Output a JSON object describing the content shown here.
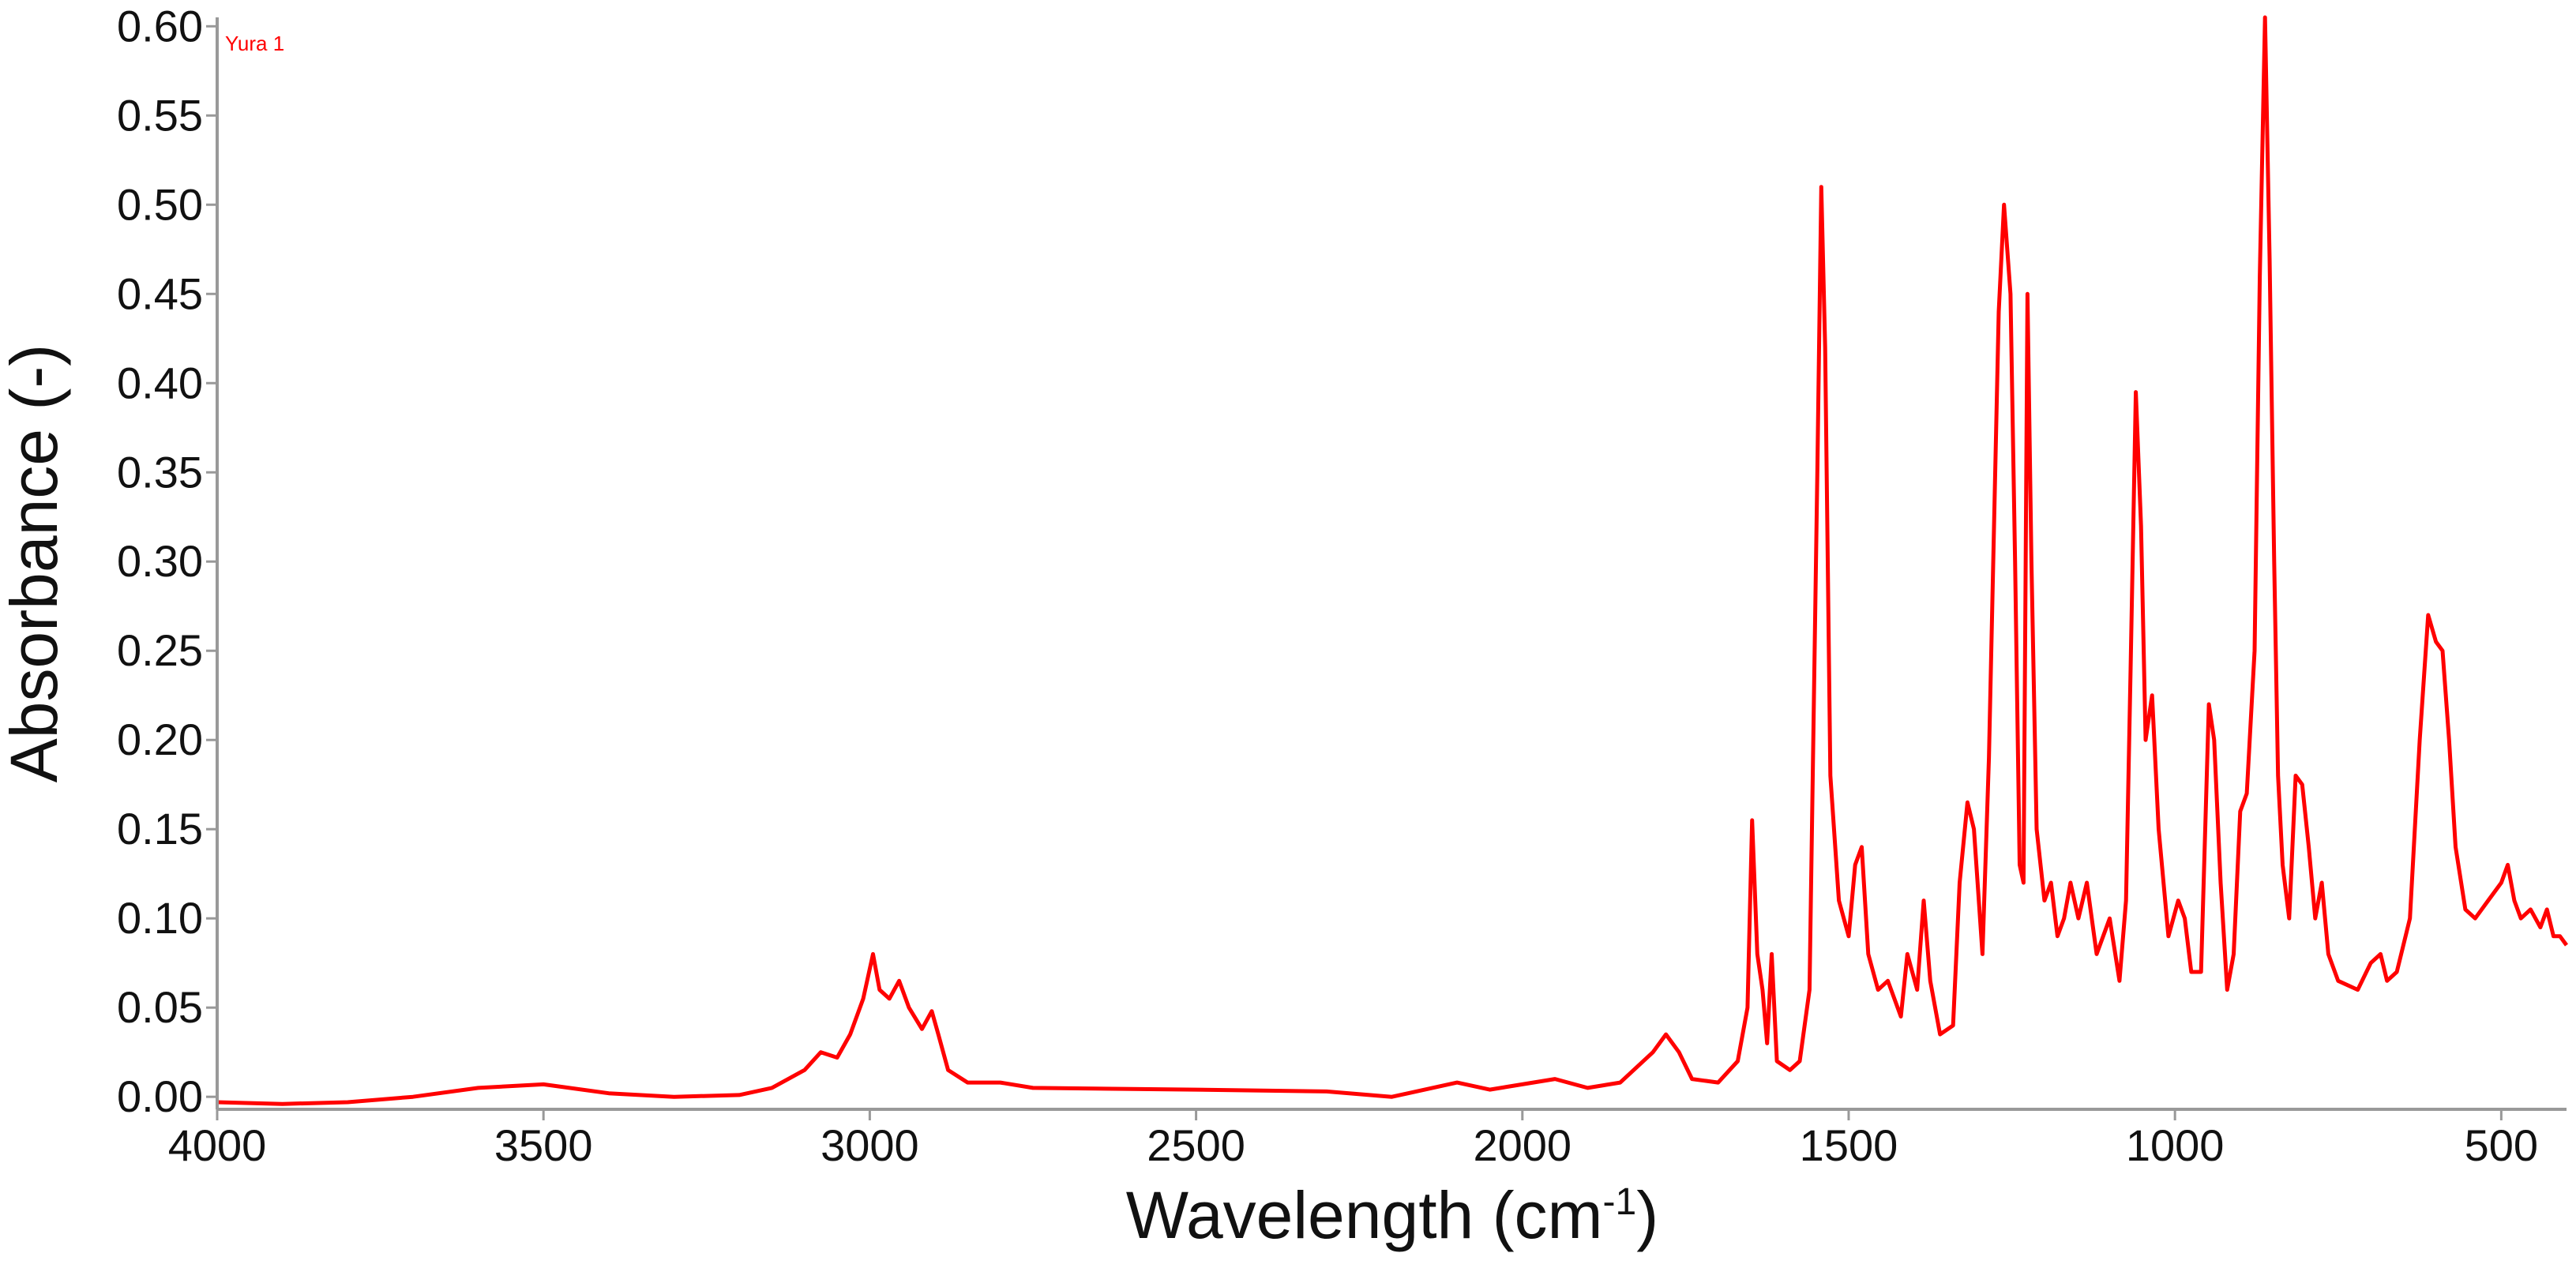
{
  "chart_data": {
    "type": "line",
    "title": "",
    "xlabel": "Wavelength (cm",
    "xlabel_superscript": "-1",
    "xlabel_suffix": ")",
    "ylabel": "Absorbance (-)",
    "xlim": [
      4000,
      400
    ],
    "ylim": [
      -0.007,
      0.605
    ],
    "x_ticks": [
      4000,
      3500,
      3000,
      2500,
      2000,
      1500,
      1000,
      500
    ],
    "x_tick_labels": [
      "4000",
      "3500",
      "3000",
      "2500",
      "2000",
      "1500",
      "1000",
      "500"
    ],
    "y_ticks": [
      0,
      0.05,
      0.1,
      0.15,
      0.2,
      0.25,
      0.3,
      0.35,
      0.4,
      0.45,
      0.5,
      0.55,
      0.6
    ],
    "y_tick_labels": [
      "0.00",
      "0.05",
      "0.10",
      "0.15",
      "0.20",
      "0.25",
      "0.30",
      "0.35",
      "0.40",
      "0.45",
      "0.50",
      "0.55",
      "0.60"
    ],
    "grid": false,
    "legend_position": "top-left",
    "series": [
      {
        "name": "Yura 1",
        "color": "#ff0000",
        "points": [
          [
            4000,
            -0.003
          ],
          [
            3900,
            -0.004
          ],
          [
            3800,
            -0.003
          ],
          [
            3700,
            0.0
          ],
          [
            3600,
            0.005
          ],
          [
            3500,
            0.007
          ],
          [
            3400,
            0.002
          ],
          [
            3300,
            0.0
          ],
          [
            3200,
            0.001
          ],
          [
            3150,
            0.005
          ],
          [
            3100,
            0.015
          ],
          [
            3075,
            0.025
          ],
          [
            3050,
            0.022
          ],
          [
            3030,
            0.035
          ],
          [
            3010,
            0.055
          ],
          [
            2995,
            0.08
          ],
          [
            2985,
            0.06
          ],
          [
            2970,
            0.055
          ],
          [
            2955,
            0.065
          ],
          [
            2940,
            0.05
          ],
          [
            2920,
            0.038
          ],
          [
            2905,
            0.048
          ],
          [
            2895,
            0.035
          ],
          [
            2880,
            0.015
          ],
          [
            2850,
            0.008
          ],
          [
            2800,
            0.008
          ],
          [
            2750,
            0.005
          ],
          [
            2500,
            0.004
          ],
          [
            2300,
            0.003
          ],
          [
            2200,
            0.0
          ],
          [
            2100,
            0.008
          ],
          [
            2050,
            0.004
          ],
          [
            1950,
            0.01
          ],
          [
            1900,
            0.005
          ],
          [
            1850,
            0.008
          ],
          [
            1800,
            0.025
          ],
          [
            1780,
            0.035
          ],
          [
            1760,
            0.025
          ],
          [
            1740,
            0.01
          ],
          [
            1700,
            0.008
          ],
          [
            1670,
            0.02
          ],
          [
            1655,
            0.05
          ],
          [
            1648,
            0.155
          ],
          [
            1640,
            0.08
          ],
          [
            1632,
            0.06
          ],
          [
            1625,
            0.03
          ],
          [
            1618,
            0.08
          ],
          [
            1610,
            0.02
          ],
          [
            1590,
            0.015
          ],
          [
            1575,
            0.02
          ],
          [
            1560,
            0.06
          ],
          [
            1548,
            0.35
          ],
          [
            1542,
            0.51
          ],
          [
            1536,
            0.42
          ],
          [
            1528,
            0.18
          ],
          [
            1515,
            0.11
          ],
          [
            1500,
            0.09
          ],
          [
            1490,
            0.13
          ],
          [
            1480,
            0.14
          ],
          [
            1470,
            0.08
          ],
          [
            1455,
            0.06
          ],
          [
            1440,
            0.065
          ],
          [
            1420,
            0.045
          ],
          [
            1410,
            0.08
          ],
          [
            1395,
            0.06
          ],
          [
            1385,
            0.11
          ],
          [
            1375,
            0.065
          ],
          [
            1360,
            0.035
          ],
          [
            1340,
            0.04
          ],
          [
            1330,
            0.12
          ],
          [
            1318,
            0.165
          ],
          [
            1308,
            0.15
          ],
          [
            1295,
            0.08
          ],
          [
            1285,
            0.19
          ],
          [
            1270,
            0.44
          ],
          [
            1262,
            0.5
          ],
          [
            1252,
            0.45
          ],
          [
            1245,
            0.3
          ],
          [
            1238,
            0.13
          ],
          [
            1232,
            0.12
          ],
          [
            1226,
            0.45
          ],
          [
            1220,
            0.3
          ],
          [
            1212,
            0.15
          ],
          [
            1200,
            0.11
          ],
          [
            1190,
            0.12
          ],
          [
            1180,
            0.09
          ],
          [
            1170,
            0.1
          ],
          [
            1160,
            0.12
          ],
          [
            1148,
            0.1
          ],
          [
            1135,
            0.12
          ],
          [
            1120,
            0.08
          ],
          [
            1100,
            0.1
          ],
          [
            1085,
            0.065
          ],
          [
            1075,
            0.11
          ],
          [
            1068,
            0.24
          ],
          [
            1060,
            0.395
          ],
          [
            1052,
            0.32
          ],
          [
            1045,
            0.2
          ],
          [
            1035,
            0.225
          ],
          [
            1025,
            0.15
          ],
          [
            1010,
            0.09
          ],
          [
            995,
            0.11
          ],
          [
            985,
            0.1
          ],
          [
            975,
            0.07
          ],
          [
            960,
            0.07
          ],
          [
            948,
            0.22
          ],
          [
            940,
            0.2
          ],
          [
            930,
            0.12
          ],
          [
            920,
            0.06
          ],
          [
            910,
            0.08
          ],
          [
            900,
            0.16
          ],
          [
            890,
            0.17
          ],
          [
            878,
            0.25
          ],
          [
            870,
            0.46
          ],
          [
            862,
            0.605
          ],
          [
            855,
            0.47
          ],
          [
            848,
            0.3
          ],
          [
            842,
            0.18
          ],
          [
            835,
            0.13
          ],
          [
            825,
            0.1
          ],
          [
            815,
            0.18
          ],
          [
            805,
            0.175
          ],
          [
            795,
            0.14
          ],
          [
            785,
            0.1
          ],
          [
            775,
            0.12
          ],
          [
            765,
            0.08
          ],
          [
            750,
            0.065
          ],
          [
            720,
            0.06
          ],
          [
            700,
            0.075
          ],
          [
            685,
            0.08
          ],
          [
            675,
            0.065
          ],
          [
            660,
            0.07
          ],
          [
            640,
            0.1
          ],
          [
            625,
            0.2
          ],
          [
            612,
            0.27
          ],
          [
            600,
            0.255
          ],
          [
            590,
            0.25
          ],
          [
            580,
            0.2
          ],
          [
            570,
            0.14
          ],
          [
            555,
            0.105
          ],
          [
            540,
            0.1
          ],
          [
            520,
            0.11
          ],
          [
            500,
            0.12
          ],
          [
            490,
            0.13
          ],
          [
            480,
            0.11
          ],
          [
            470,
            0.1
          ],
          [
            455,
            0.105
          ],
          [
            440,
            0.095
          ],
          [
            430,
            0.105
          ],
          [
            420,
            0.09
          ],
          [
            410,
            0.09
          ],
          [
            400,
            0.085
          ]
        ]
      }
    ]
  }
}
